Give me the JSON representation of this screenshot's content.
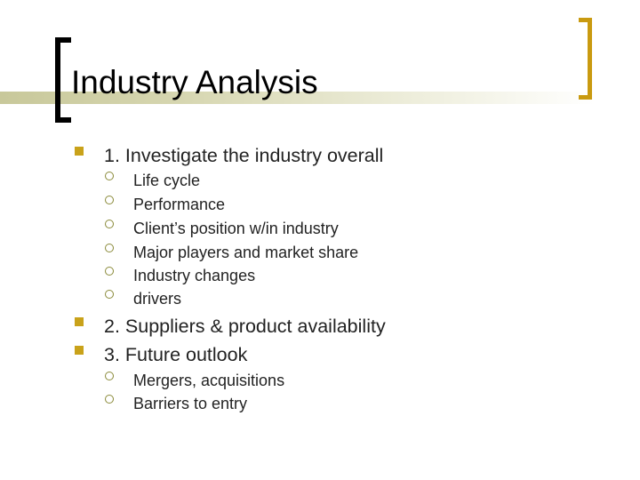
{
  "slide": {
    "title": "Industry Analysis",
    "accent_color": "#c99a10",
    "bullets": [
      {
        "text": "1. Investigate the industry overall",
        "sub": [
          "Life cycle",
          "Performance",
          "Client’s position w/in industry",
          "Major players and market share",
          "Industry changes",
          "drivers"
        ]
      },
      {
        "text": "2. Suppliers & product availability",
        "sub": []
      },
      {
        "text": "3. Future outlook",
        "sub": [
          "Mergers, acquisitions",
          "Barriers to entry"
        ]
      }
    ]
  }
}
